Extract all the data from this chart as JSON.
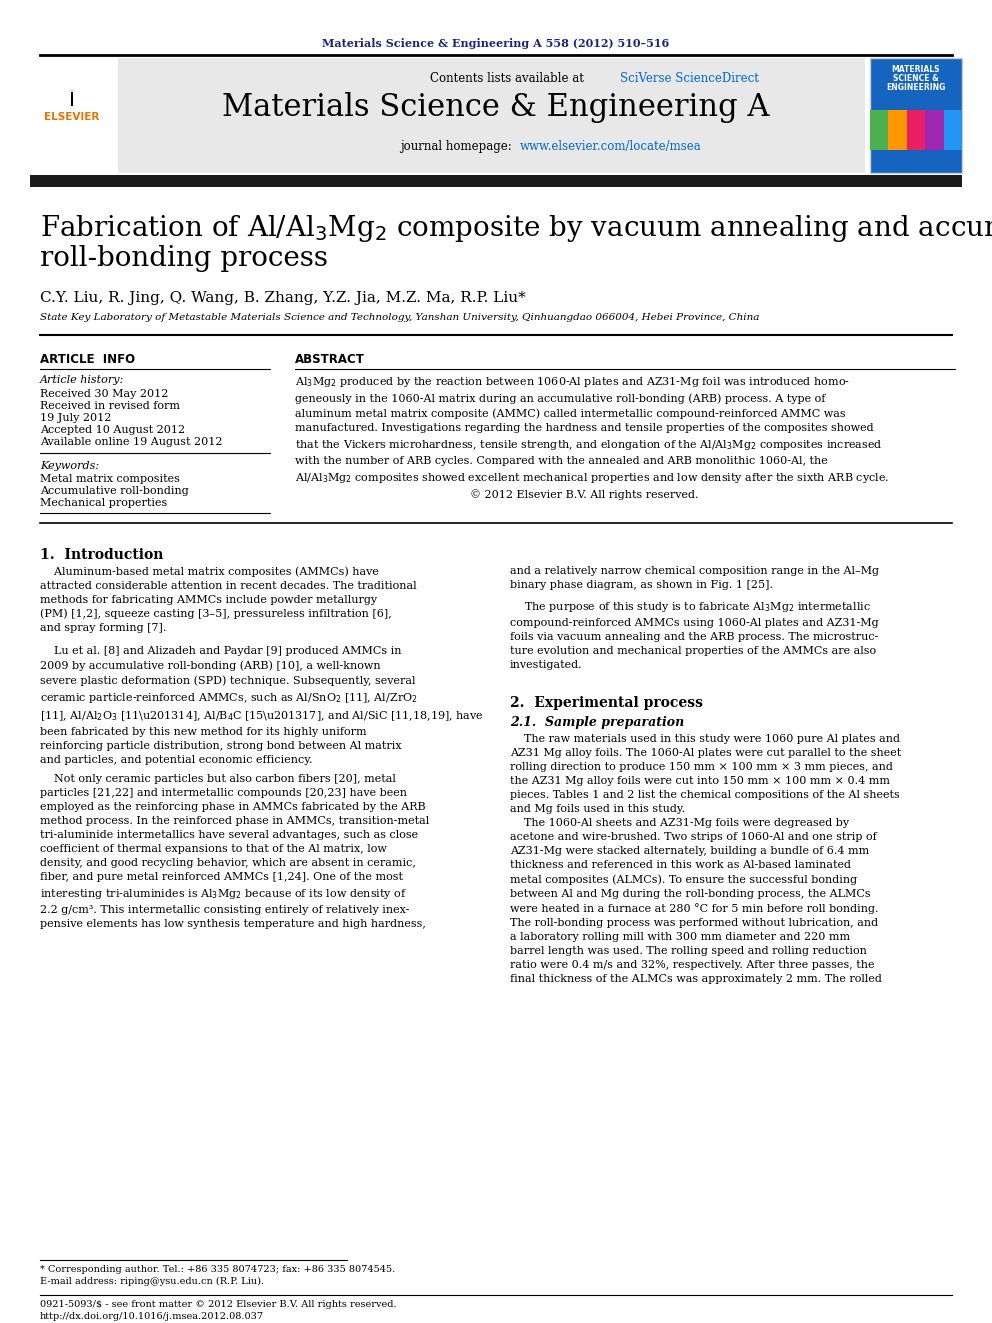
{
  "journal_ref": "Materials Science & Engineering A 558 (2012) 510–516",
  "journal_name": "Materials Science & Engineering A",
  "journal_homepage": "journal homepage: www.elsevier.com/locate/msea",
  "authors": "C.Y. Liu, R. Jing, Q. Wang, B. Zhang, Y.Z. Jia, M.Z. Ma, R.P. Liu*",
  "affiliation": "State Key Laboratory of Metastable Materials Science and Technology, Yanshan University, Qinhuangdao 066004, Hebei Province, China",
  "article_info_label": "ARTICLE  INFO",
  "abstract_label": "ABSTRACT",
  "article_history_label": "Article history:",
  "received1": "Received 30 May 2012",
  "received2": "Received in revised form",
  "received2b": "19 July 2012",
  "accepted": "Accepted 10 August 2012",
  "available": "Available online 19 August 2012",
  "keywords_label": "Keywords:",
  "keyword1": "Metal matrix composites",
  "keyword2": "Accumulative roll-bonding",
  "keyword3": "Mechanical properties",
  "footnote1": "* Corresponding author. Tel.: +86 335 8074723; fax: +86 335 8074545.",
  "footnote2": "E-mail address: riping@ysu.edu.cn (R.P. Liu).",
  "footnote3": "0921-5093/$ - see front matter © 2012 Elsevier B.V. All rights reserved.",
  "footnote4": "http://dx.doi.org/10.1016/j.msea.2012.08.037",
  "bg_header": "#e8e8e8",
  "color_blue_link": "#0066cc",
  "color_dark_blue": "#1a237e",
  "color_black": "#000000",
  "color_white": "#ffffff",
  "color_dark_bar": "#1a1a1a",
  "cover_colors": [
    "#4caf50",
    "#ff9800",
    "#e91e63",
    "#9c27b0",
    "#2196f3"
  ]
}
